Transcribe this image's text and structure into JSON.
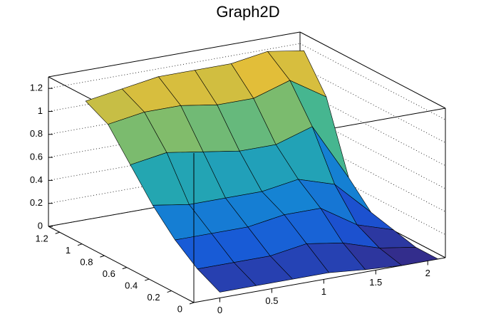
{
  "chart_data": {
    "type": "surface",
    "title": "Graph2D",
    "x": [
      0,
      0.35,
      0.7,
      1.05,
      1.4,
      1.75,
      2.1
    ],
    "y": [
      0,
      0.2,
      0.4,
      0.6,
      0.8,
      1.0,
      1.2
    ],
    "z": [
      [
        0.05,
        0.05,
        0.05,
        0.05,
        0.02,
        0.0,
        0.0
      ],
      [
        0.15,
        0.15,
        0.15,
        0.2,
        0.15,
        0.05,
        0.0
      ],
      [
        0.3,
        0.3,
        0.3,
        0.35,
        0.35,
        0.15,
        0.05
      ],
      [
        0.5,
        0.45,
        0.45,
        0.45,
        0.5,
        0.4,
        0.1
      ],
      [
        0.75,
        0.8,
        0.75,
        0.7,
        0.7,
        0.8,
        0.3
      ],
      [
        1.0,
        1.05,
        1.05,
        1.0,
        1.0,
        1.1,
        0.9
      ],
      [
        1.1,
        1.15,
        1.2,
        1.2,
        1.2,
        1.25,
        1.2
      ]
    ],
    "xlim": [
      -0.25,
      2.17
    ],
    "ylim": [
      0,
      1.3
    ],
    "zlim": [
      0,
      1.3
    ],
    "xticks": [
      0,
      0.5,
      1,
      1.5,
      2
    ],
    "yticks": [
      0,
      0.2,
      0.4,
      0.6,
      0.8,
      1,
      1.2
    ],
    "zticks": [
      0,
      0.2,
      0.4,
      0.6,
      0.8,
      1,
      1.2
    ],
    "grid": true
  }
}
